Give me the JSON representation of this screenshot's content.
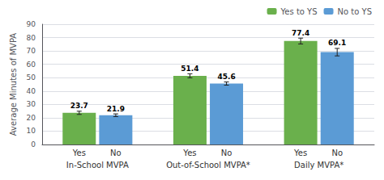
{
  "chart_data": {
    "type": "bar",
    "categories": [
      "In-School MVPA",
      "Out-of-School MVPA*",
      "Daily MVPA*"
    ],
    "subcategories": [
      "Yes",
      "No"
    ],
    "series": [
      {
        "name": "Yes to YS",
        "color": "#6ab04c",
        "values": [
          23.7,
          51.4,
          77.4
        ],
        "errors": [
          1.2,
          1.5,
          2.2
        ]
      },
      {
        "name": "No to YS",
        "color": "#5b9bd5",
        "values": [
          21.9,
          45.6,
          69.1
        ],
        "errors": [
          1.0,
          1.2,
          2.8
        ]
      }
    ],
    "ylabel": "Average Minutes of MVPA",
    "ylim": [
      0,
      90
    ],
    "yticks": [
      0,
      10,
      20,
      30,
      40,
      50,
      60,
      70,
      80,
      90
    ],
    "grid": true,
    "legend": "upper right",
    "data_labels": true
  }
}
